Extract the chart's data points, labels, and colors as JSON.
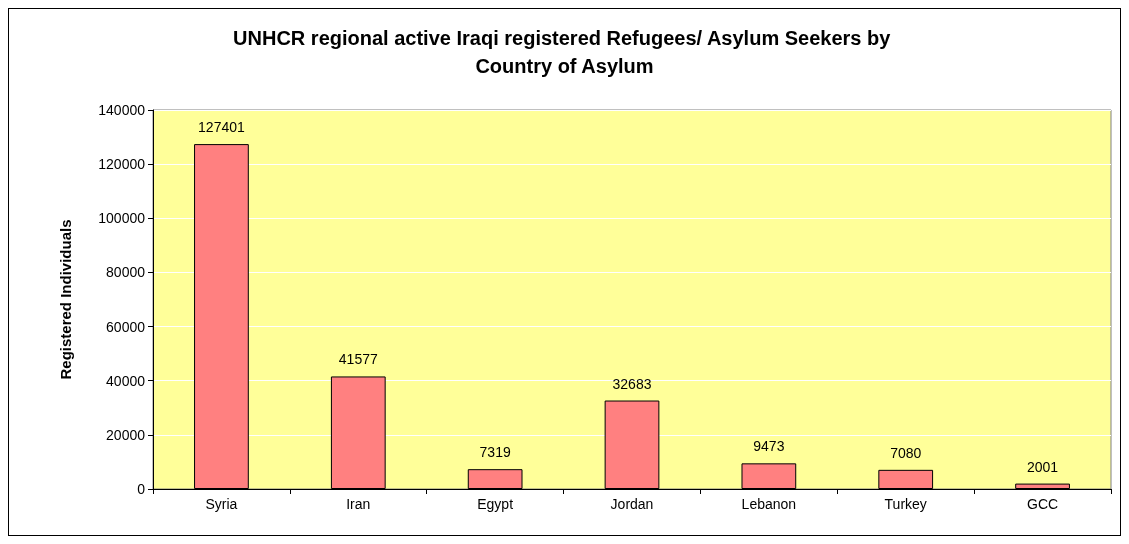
{
  "chart_data": {
    "type": "bar",
    "title": "UNHCR regional active Iraqi registered Refugees/ Asylum Seekers by Country of Asylum",
    "ylabel": "Registered Individuals",
    "categories": [
      "Syria",
      "Iran",
      "Egypt",
      "Jordan",
      "Lebanon",
      "Turkey",
      "GCC"
    ],
    "values": [
      127401,
      41577,
      7319,
      32683,
      9473,
      7080,
      2001
    ],
    "color": "#ff8080",
    "ylim": [
      0,
      140000
    ],
    "yticks": [
      0,
      20000,
      40000,
      60000,
      80000,
      100000,
      120000,
      140000
    ],
    "grid": "y",
    "data_labels": true
  }
}
